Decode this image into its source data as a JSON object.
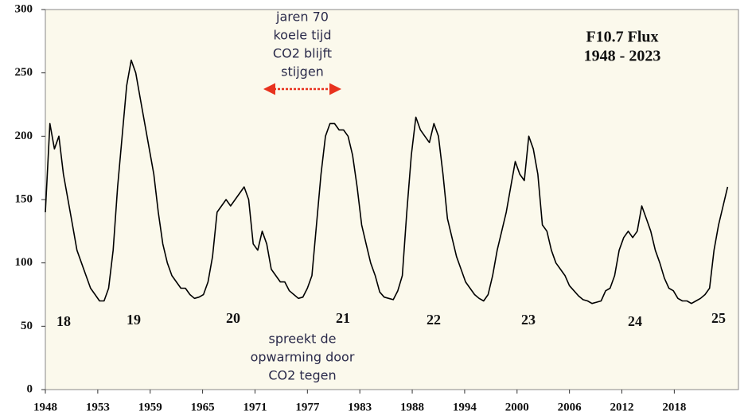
{
  "chart_data": {
    "type": "line",
    "title": [
      "F10.7 Flux",
      "1948 - 2023"
    ],
    "annotations": [
      [
        "jaren 70",
        "koele tijd",
        "CO2 blijft",
        "stijgen"
      ],
      [
        "spreekt de",
        "opwarming door",
        "CO2 tegen"
      ]
    ],
    "cycle_labels": [
      "18",
      "19",
      "20",
      "21",
      "22",
      "23",
      "24",
      "25"
    ],
    "color": "#000000",
    "xlim": [
      1948,
      2024.7
    ],
    "ylim": [
      0,
      300
    ],
    "yticks": [
      0,
      50,
      100,
      150,
      200,
      250,
      300
    ],
    "xticks": [
      {
        "value": 1948,
        "label": "1948"
      },
      {
        "value": 1953.8,
        "label": "1953"
      },
      {
        "value": 1959.6,
        "label": "1959"
      },
      {
        "value": 1965.4,
        "label": "1965"
      },
      {
        "value": 1971.2,
        "label": "1971"
      },
      {
        "value": 1977,
        "label": "1977"
      },
      {
        "value": 1982.8,
        "label": "1983"
      },
      {
        "value": 1988.6,
        "label": "1988"
      },
      {
        "value": 1994.4,
        "label": "1994"
      },
      {
        "value": 2000.2,
        "label": "2000"
      },
      {
        "value": 2006,
        "label": "2006"
      },
      {
        "value": 2011.8,
        "label": "2012"
      },
      {
        "value": 2017.6,
        "label": "2018"
      }
    ],
    "x": [
      1948.0,
      1948.5,
      1949.0,
      1949.5,
      1950.0,
      1950.5,
      1951.0,
      1951.5,
      1952.0,
      1952.5,
      1953.0,
      1953.5,
      1954.0,
      1954.5,
      1955.0,
      1955.5,
      1956.0,
      1956.5,
      1957.0,
      1957.5,
      1958.0,
      1958.5,
      1959.0,
      1959.5,
      1960.0,
      1960.5,
      1961.0,
      1961.5,
      1962.0,
      1962.5,
      1963.0,
      1963.5,
      1964.0,
      1964.5,
      1965.0,
      1965.5,
      1966.0,
      1966.5,
      1967.0,
      1967.5,
      1968.0,
      1968.5,
      1969.0,
      1969.5,
      1970.0,
      1970.5,
      1971.0,
      1971.5,
      1972.0,
      1972.5,
      1973.0,
      1973.5,
      1974.0,
      1974.5,
      1975.0,
      1975.5,
      1976.0,
      1976.5,
      1977.0,
      1977.5,
      1978.0,
      1978.5,
      1979.0,
      1979.5,
      1980.0,
      1980.5,
      1981.0,
      1981.5,
      1982.0,
      1982.5,
      1983.0,
      1983.5,
      1984.0,
      1984.5,
      1985.0,
      1985.5,
      1986.0,
      1986.5,
      1987.0,
      1987.5,
      1988.0,
      1988.5,
      1989.0,
      1989.5,
      1990.0,
      1990.5,
      1991.0,
      1991.5,
      1992.0,
      1992.5,
      1993.0,
      1993.5,
      1994.0,
      1994.5,
      1995.0,
      1995.5,
      1996.0,
      1996.5,
      1997.0,
      1997.5,
      1998.0,
      1998.5,
      1999.0,
      1999.5,
      2000.0,
      2000.5,
      2001.0,
      2001.5,
      2002.0,
      2002.5,
      2003.0,
      2003.5,
      2004.0,
      2004.5,
      2005.0,
      2005.5,
      2006.0,
      2006.5,
      2007.0,
      2007.5,
      2008.0,
      2008.5,
      2009.0,
      2009.5,
      2010.0,
      2010.5,
      2011.0,
      2011.5,
      2012.0,
      2012.5,
      2013.0,
      2013.5,
      2014.0,
      2014.5,
      2015.0,
      2015.5,
      2016.0,
      2016.5,
      2017.0,
      2017.5,
      2018.0,
      2018.5,
      2019.0,
      2019.5,
      2020.0,
      2020.5,
      2021.0,
      2021.5,
      2022.0,
      2022.5,
      2023.0,
      2023.5
    ],
    "values": [
      140,
      210,
      190,
      200,
      170,
      150,
      130,
      110,
      100,
      90,
      80,
      75,
      70,
      70,
      80,
      110,
      160,
      200,
      240,
      260,
      250,
      230,
      210,
      190,
      170,
      140,
      115,
      100,
      90,
      85,
      80,
      80,
      75,
      72,
      73,
      75,
      85,
      105,
      140,
      145,
      150,
      145,
      150,
      155,
      160,
      150,
      115,
      110,
      125,
      115,
      95,
      90,
      85,
      85,
      78,
      75,
      72,
      73,
      80,
      90,
      130,
      170,
      200,
      210,
      210,
      205,
      205,
      200,
      185,
      160,
      130,
      115,
      100,
      90,
      77,
      73,
      72,
      71,
      78,
      90,
      140,
      185,
      215,
      205,
      200,
      195,
      210,
      200,
      170,
      135,
      120,
      105,
      95,
      85,
      80,
      75,
      72,
      70,
      75,
      90,
      110,
      125,
      140,
      160,
      180,
      170,
      165,
      200,
      190,
      170,
      130,
      125,
      110,
      100,
      95,
      90,
      82,
      78,
      74,
      71,
      70,
      68,
      69,
      70,
      78,
      80,
      90,
      110,
      120,
      125,
      120,
      125,
      145,
      135,
      125,
      110,
      100,
      88,
      80,
      78,
      72,
      70,
      70,
      68,
      70,
      72,
      75,
      80,
      110,
      130,
      145,
      160
    ]
  }
}
